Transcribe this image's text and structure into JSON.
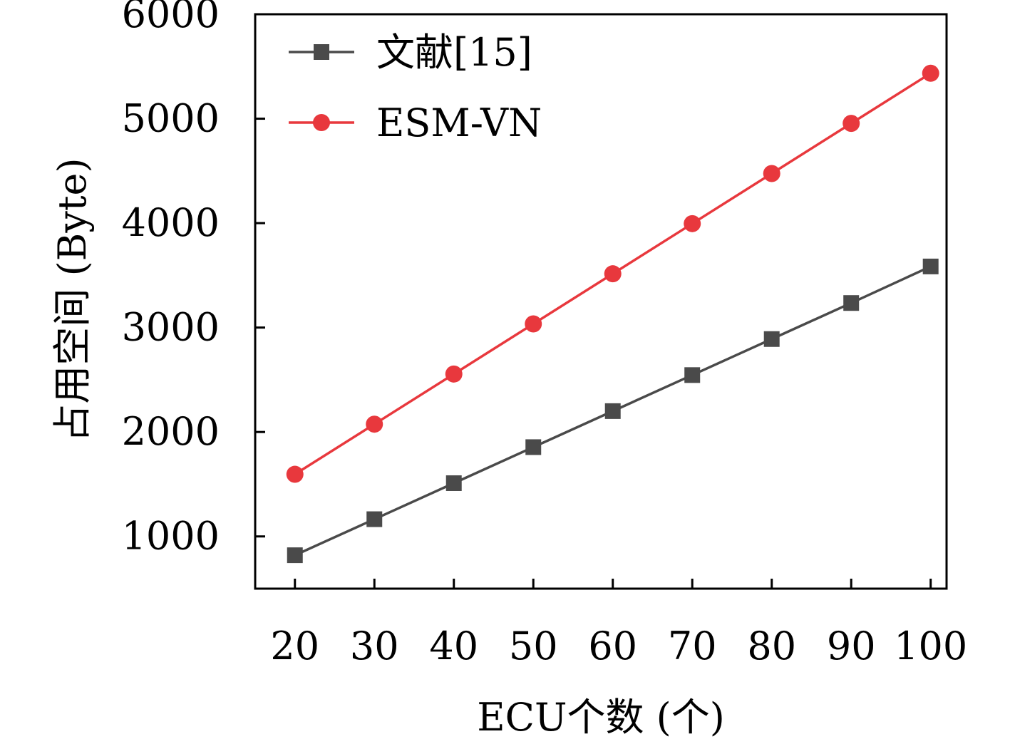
{
  "chart_data": {
    "type": "line",
    "title": "",
    "xlabel": "ECU个数 (个)",
    "ylabel": "占用空间 (Byte)",
    "x": [
      20,
      30,
      40,
      50,
      60,
      70,
      80,
      90,
      100
    ],
    "x_tick_labels": [
      "20",
      "30",
      "40",
      "50",
      "60",
      "70",
      "80",
      "90",
      "100"
    ],
    "y_tick_labels": [
      "1000",
      "2000",
      "3000",
      "4000",
      "5000",
      "6000"
    ],
    "y_ticks": [
      1000,
      2000,
      3000,
      4000,
      5000,
      6000
    ],
    "xlim": [
      15,
      102
    ],
    "ylim": [
      500,
      6000
    ],
    "grid": false,
    "legend_position": "top-left",
    "series": [
      {
        "name": "文献[15]",
        "color": "#4a4a4a",
        "marker": "square",
        "values": [
          820,
          1165,
          1510,
          1855,
          2200,
          2545,
          2890,
          3235,
          3585
        ]
      },
      {
        "name": "ESM-VN",
        "color": "#e8383d",
        "marker": "circle",
        "values": [
          1595,
          2075,
          2555,
          3035,
          3515,
          3995,
          4475,
          4955,
          5435
        ]
      }
    ]
  }
}
